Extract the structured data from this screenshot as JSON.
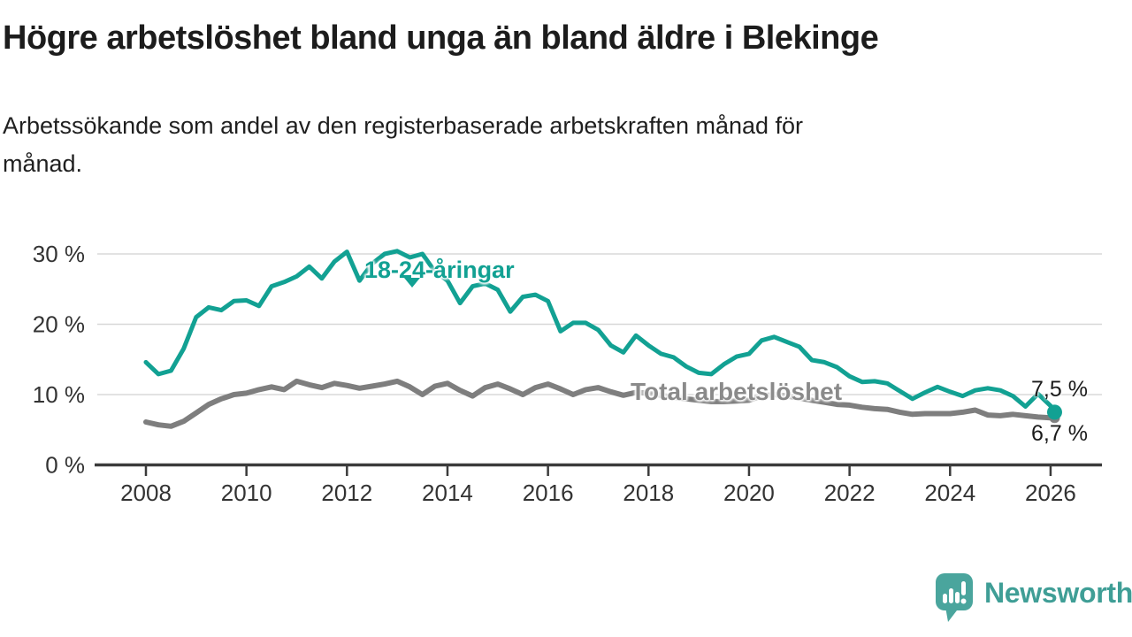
{
  "header": {
    "title": "Högre arbetslöshet bland unga än bland äldre i Blekinge",
    "subtitle_lines": [
      "Arbetssökande som andel av den registerbaserade arbetskraften månad för",
      "månad."
    ]
  },
  "chart_data": {
    "type": "line",
    "title": "Högre arbetslöshet bland unga än bland äldre i Blekinge",
    "subtitle": "Arbetssökande som andel av den registerbaserade arbetskraften månad för månad.",
    "unit": "percent",
    "xlim": [
      2008,
      2026.4
    ],
    "ylim": [
      0,
      32
    ],
    "grid": "horizontal",
    "legend_position": "inline-labels-on-lines",
    "sampling_note": "monthly series shown in chart; values below are quarterly estimates read from gridlines",
    "x_ticks": [
      2008,
      2010,
      2012,
      2014,
      2016,
      2018,
      2020,
      2022,
      2024,
      2026
    ],
    "y_ticks": [
      {
        "value": 0,
        "label": "0 %"
      },
      {
        "value": 10,
        "label": "10 %"
      },
      {
        "value": 20,
        "label": "20 %"
      },
      {
        "value": 30,
        "label": "30 %"
      }
    ],
    "series": [
      {
        "name": "18-24-åringar",
        "slug": "18-24-aringar",
        "color": "#12a193",
        "label_color": "#12a193",
        "line_width": 5,
        "end_dot_radius": 8.5,
        "end_value": 7.5,
        "end_value_label": "7,5 %",
        "x": [
          2008,
          2008.25,
          2008.5,
          2008.75,
          2009,
          2009.25,
          2009.5,
          2009.75,
          2010,
          2010.25,
          2010.5,
          2010.75,
          2011,
          2011.25,
          2011.5,
          2011.75,
          2012,
          2012.25,
          2012.5,
          2012.75,
          2013,
          2013.25,
          2013.5,
          2013.75,
          2014,
          2014.25,
          2014.5,
          2014.75,
          2015,
          2015.25,
          2015.5,
          2015.75,
          2016,
          2016.25,
          2016.5,
          2016.75,
          2017,
          2017.25,
          2017.5,
          2017.75,
          2018,
          2018.25,
          2018.5,
          2018.75,
          2019,
          2019.25,
          2019.5,
          2019.75,
          2020,
          2020.25,
          2020.5,
          2020.75,
          2021,
          2021.25,
          2021.5,
          2021.75,
          2022,
          2022.25,
          2022.5,
          2022.75,
          2023,
          2023.25,
          2023.5,
          2023.75,
          2024,
          2024.25,
          2024.5,
          2024.75,
          2025,
          2025.25,
          2025.5,
          2025.75,
          2026,
          2026.08
        ],
        "values": [
          14.6,
          12.9,
          13.4,
          16.5,
          21.0,
          22.4,
          22.0,
          23.3,
          23.4,
          22.6,
          25.4,
          26.0,
          26.8,
          28.2,
          26.5,
          28.9,
          30.3,
          26.2,
          28.6,
          30.0,
          30.4,
          29.5,
          30.0,
          27.5,
          26.2,
          23.0,
          25.4,
          25.8,
          24.9,
          21.8,
          23.9,
          24.2,
          23.3,
          19.0,
          20.2,
          20.2,
          19.2,
          17.0,
          16.0,
          18.4,
          17.0,
          15.8,
          15.3,
          14.0,
          13.1,
          12.9,
          14.3,
          15.4,
          15.8,
          17.7,
          18.2,
          17.5,
          16.8,
          14.9,
          14.6,
          13.9,
          12.6,
          11.8,
          11.9,
          11.6,
          10.5,
          9.4,
          10.3,
          11.1,
          10.4,
          9.8,
          10.6,
          10.9,
          10.6,
          9.8,
          8.3,
          10.1,
          8.4,
          7.5
        ]
      },
      {
        "name": "Total arbetslöshet",
        "slug": "total-arbetsloshet",
        "color": "#7e7e7e",
        "label_color": "#8a8a8a",
        "line_width": 6,
        "end_dot_radius": 6,
        "end_value": 6.7,
        "end_value_label": "6,7 %",
        "x": [
          2008,
          2008.25,
          2008.5,
          2008.75,
          2009,
          2009.25,
          2009.5,
          2009.75,
          2010,
          2010.25,
          2010.5,
          2010.75,
          2011,
          2011.25,
          2011.5,
          2011.75,
          2012,
          2012.25,
          2012.5,
          2012.75,
          2013,
          2013.25,
          2013.5,
          2013.75,
          2014,
          2014.25,
          2014.5,
          2014.75,
          2015,
          2015.25,
          2015.5,
          2015.75,
          2016,
          2016.25,
          2016.5,
          2016.75,
          2017,
          2017.25,
          2017.5,
          2017.75,
          2018,
          2018.25,
          2018.5,
          2018.75,
          2019,
          2019.25,
          2019.5,
          2019.75,
          2020,
          2020.25,
          2020.5,
          2020.75,
          2021,
          2021.25,
          2021.5,
          2021.75,
          2022,
          2022.25,
          2022.5,
          2022.75,
          2023,
          2023.25,
          2023.5,
          2023.75,
          2024,
          2024.25,
          2024.5,
          2024.75,
          2025,
          2025.25,
          2025.5,
          2025.75,
          2026,
          2026.08
        ],
        "values": [
          6.1,
          5.7,
          5.5,
          6.2,
          7.4,
          8.6,
          9.4,
          10.0,
          10.2,
          10.7,
          11.1,
          10.7,
          11.9,
          11.4,
          11.0,
          11.6,
          11.3,
          10.9,
          11.2,
          11.5,
          11.9,
          11.1,
          10.0,
          11.2,
          11.6,
          10.6,
          9.8,
          11.0,
          11.5,
          10.8,
          10.0,
          11.0,
          11.5,
          10.8,
          10.0,
          10.7,
          11.0,
          10.4,
          9.9,
          10.3,
          10.2,
          9.9,
          9.6,
          9.4,
          9.2,
          9.0,
          9.0,
          9.1,
          9.2,
          9.8,
          10.0,
          9.8,
          9.5,
          9.2,
          8.9,
          8.6,
          8.5,
          8.2,
          8.0,
          7.9,
          7.5,
          7.2,
          7.3,
          7.3,
          7.3,
          7.5,
          7.8,
          7.1,
          7.0,
          7.2,
          7.0,
          6.8,
          6.7,
          6.7
        ]
      }
    ]
  },
  "branding": {
    "name": "Newsworthy",
    "icon": "bar-chart-speech-bubble-icon",
    "icon_color": "#4aa59d",
    "text_color": "#3f9e96"
  },
  "colors": {
    "accent_teal": "#12a193",
    "series_gray": "#7e7e7e",
    "title_text": "#1c1c1c",
    "axis_text": "#333333",
    "gridline": "#d8d8d8",
    "axis_line": "#3b3b3b",
    "background": "#ffffff"
  }
}
